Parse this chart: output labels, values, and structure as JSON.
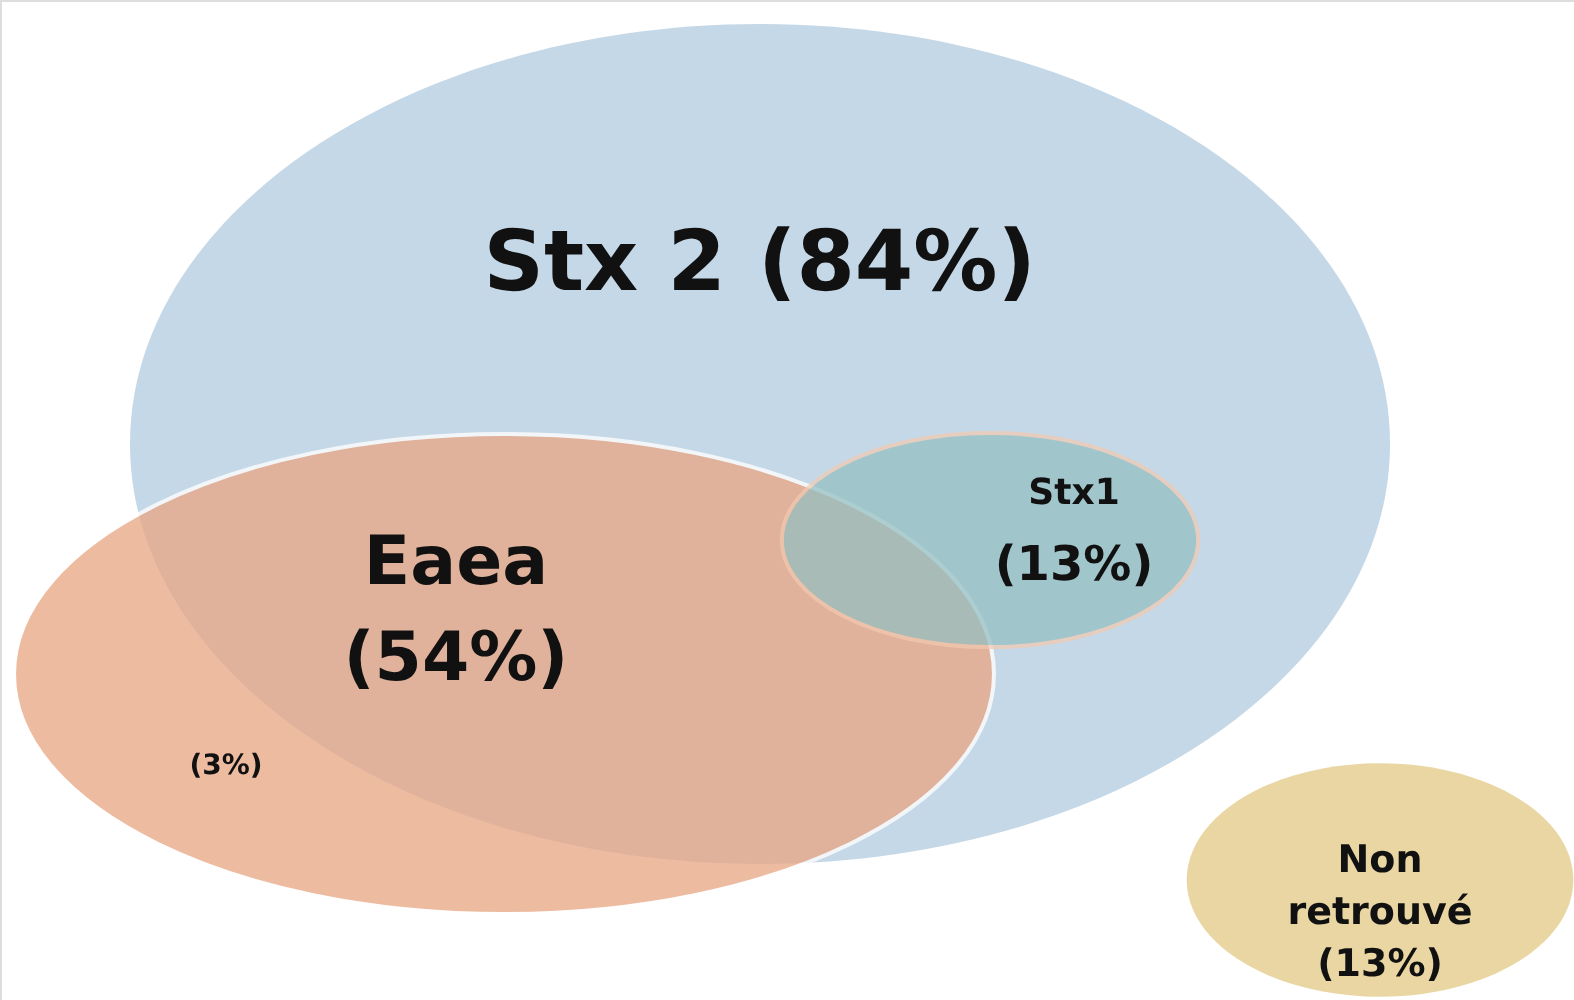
{
  "chart_data": {
    "type": "other",
    "categories": [
      "Stx 2",
      "Eaea",
      "Stx1",
      "Non retrouvé"
    ],
    "values": [
      84,
      54,
      13,
      13
    ],
    "value_labels": [
      "(84%)",
      "(54%)",
      "(13%)",
      "(13%)"
    ],
    "colors": [
      "#c5d8e7",
      "#e9a886",
      "#93bfc1",
      "#e9d6a3"
    ],
    "annotations": [
      "(3%)"
    ]
  }
}
